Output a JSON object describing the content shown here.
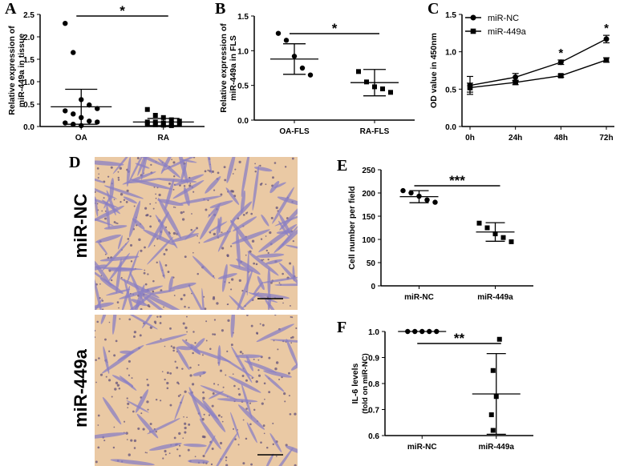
{
  "panel_labels": [
    "A",
    "B",
    "C",
    "D",
    "E",
    "F"
  ],
  "chart_data": [
    {
      "panel": "A",
      "type": "scatter",
      "ylabel": "Relative expression of\nmiR-449a in tissue",
      "categories": [
        "OA",
        "RA"
      ],
      "ylim": [
        0,
        2.5
      ],
      "yticks": [
        "0.0",
        "0.5",
        "1.0",
        "1.5",
        "2.0",
        "2.5"
      ],
      "points": [
        [
          2.3,
          1.65,
          0.6,
          0.48,
          0.4,
          0.35,
          0.28,
          0.2,
          0.12,
          0.1,
          0.08,
          0.05,
          0.02
        ],
        [
          0.38,
          0.25,
          0.2,
          0.15,
          0.12,
          0.1,
          0.1,
          0.08,
          0.07,
          0.06,
          0.05,
          0.04,
          0.03,
          0.02
        ]
      ],
      "mean": [
        0.44,
        0.1
      ],
      "error": [
        0.39,
        0.08
      ],
      "significance": "*"
    },
    {
      "panel": "B",
      "type": "scatter",
      "ylabel": "Relative expression of\nmiR-449a in FLS",
      "categories": [
        "OA-FLS",
        "RA-FLS"
      ],
      "ylim": [
        0,
        1.5
      ],
      "yticks": [
        "0.0",
        "0.5",
        "1.0",
        "1.5"
      ],
      "points": [
        [
          1.25,
          1.15,
          0.92,
          0.75,
          0.65
        ],
        [
          0.7,
          0.55,
          0.48,
          0.45,
          0.4
        ]
      ],
      "mean": [
        0.88,
        0.54
      ],
      "error": [
        0.22,
        0.19
      ],
      "significance": "*"
    },
    {
      "panel": "C",
      "type": "line",
      "ylabel": "OD value in 450nm",
      "categories": [
        "0h",
        "24h",
        "48h",
        "72h"
      ],
      "ylim": [
        0,
        1.5
      ],
      "yticks": [
        "0.0",
        "0.5",
        "1.0",
        "1.5"
      ],
      "series": [
        {
          "name": "miR-NC",
          "values": [
            0.55,
            0.66,
            0.86,
            1.17
          ],
          "error": [
            0.12,
            0.05,
            0.03,
            0.05
          ]
        },
        {
          "name": "miR-449a",
          "values": [
            0.52,
            0.59,
            0.68,
            0.89
          ],
          "error": [
            0.06,
            0.03,
            0.02,
            0.03
          ]
        }
      ],
      "significance": [
        {
          "at": "48h",
          "mark": "*"
        },
        {
          "at": "72h",
          "mark": "*"
        }
      ]
    },
    {
      "panel": "E",
      "type": "scatter",
      "ylabel": "Cell number per field",
      "categories": [
        "miR-NC",
        "miR-449a"
      ],
      "ylim": [
        0,
        250
      ],
      "yticks": [
        "0",
        "50",
        "100",
        "150",
        "200",
        "250"
      ],
      "points": [
        [
          205,
          200,
          193,
          185,
          180
        ],
        [
          135,
          125,
          112,
          104,
          95
        ]
      ],
      "mean": [
        192,
        116
      ],
      "error": [
        13,
        20
      ],
      "significance": "***"
    },
    {
      "panel": "F",
      "type": "scatter",
      "ylabel": "IL-6 levels",
      "ylabel2": "(fold on miR-NC)",
      "categories": [
        "miR-NC",
        "miR-449a"
      ],
      "ylim": [
        0.6,
        1.0
      ],
      "yticks": [
        "0.6",
        "0.7",
        "0.8",
        "0.9",
        "1.0"
      ],
      "points": [
        [
          1.0,
          1.0,
          1.0,
          1.0,
          1.0
        ],
        [
          0.97,
          0.85,
          0.75,
          0.68,
          0.62
        ]
      ],
      "mean": [
        1.0,
        0.76
      ],
      "error": [
        0.0,
        0.155
      ],
      "significance": "**"
    }
  ],
  "micrograph_labels": [
    "miR-NC",
    "miR-449a"
  ]
}
